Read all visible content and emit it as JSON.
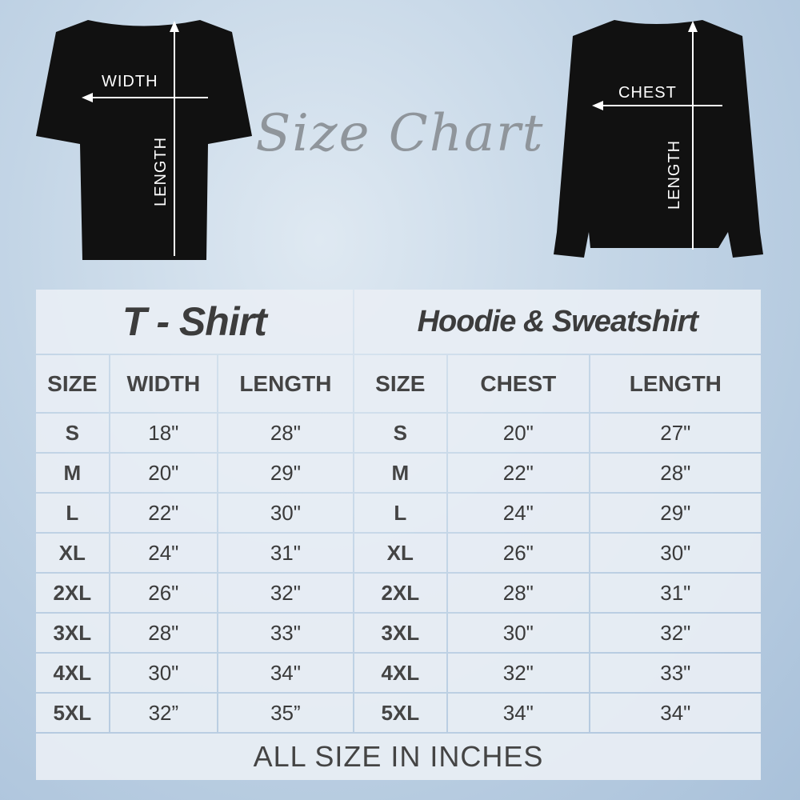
{
  "title": "Size Chart",
  "tshirt_diagram": {
    "width_label": "WIDTH",
    "length_label": "LENGTH"
  },
  "sweatshirt_diagram": {
    "chest_label": "CHEST",
    "length_label": "LENGTH"
  },
  "table": {
    "tshirt_title": "T - Shirt",
    "hoodie_title": "Hoodie & Sweatshirt",
    "headers": [
      "SIZE",
      "WIDTH",
      "LENGTH",
      "SIZE",
      "CHEST",
      "LENGTH"
    ],
    "rows": [
      [
        "S",
        "18\"",
        "28\"",
        "S",
        "20\"",
        "27\""
      ],
      [
        "M",
        "20\"",
        "29\"",
        "M",
        "22\"",
        "28\""
      ],
      [
        "L",
        "22\"",
        "30\"",
        "L",
        "24\"",
        "29\""
      ],
      [
        "XL",
        "24\"",
        "31\"",
        "XL",
        "26\"",
        "30\""
      ],
      [
        "2XL",
        "26\"",
        "32\"",
        "2XL",
        "28\"",
        "31\""
      ],
      [
        "3XL",
        "28\"",
        "33\"",
        "3XL",
        "30\"",
        "32\""
      ],
      [
        "4XL",
        "30\"",
        "34\"",
        "4XL",
        "32\"",
        "33\""
      ],
      [
        "5XL",
        "32”",
        "35”",
        "5XL",
        "34\"",
        "34\""
      ]
    ],
    "footer": "ALL SIZE IN INCHES"
  }
}
